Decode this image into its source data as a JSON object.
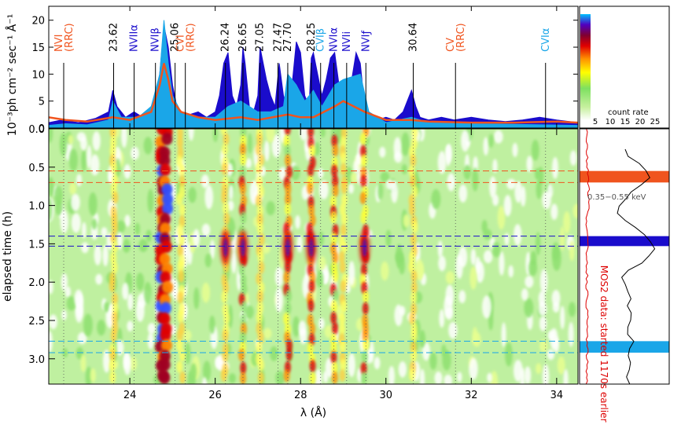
{
  "chart_data": [
    {
      "type": "area",
      "panel": "spectrum",
      "ylabel": "10⁻³ph cm⁻² sec⁻¹ Å⁻¹",
      "xlim": [
        22.1,
        34.5
      ],
      "ylim": [
        0,
        22
      ],
      "yticks": [
        0,
        5,
        10,
        15,
        20
      ],
      "series": [
        {
          "color": "#1a0ccc",
          "x": [
            22.1,
            22.4,
            22.8,
            23.2,
            23.5,
            23.6,
            23.7,
            23.9,
            24.1,
            24.3,
            24.5,
            24.6,
            24.7,
            24.8,
            24.9,
            25.0,
            25.1,
            25.2,
            25.4,
            25.6,
            25.8,
            26.0,
            26.1,
            26.2,
            26.3,
            26.4,
            26.5,
            26.6,
            26.65,
            26.7,
            26.8,
            26.9,
            27.0,
            27.05,
            27.1,
            27.2,
            27.3,
            27.4,
            27.5,
            27.6,
            27.7,
            27.8,
            27.9,
            28.0,
            28.1,
            28.2,
            28.25,
            28.3,
            28.4,
            28.5,
            28.6,
            28.7,
            28.8,
            28.9,
            29.0,
            29.1,
            29.2,
            29.3,
            29.4,
            29.5,
            29.6,
            29.8,
            30.0,
            30.2,
            30.4,
            30.6,
            30.7,
            30.8,
            31.0,
            31.3,
            31.6,
            32.0,
            32.4,
            32.8,
            33.2,
            33.6,
            34.0,
            34.5
          ],
          "y": [
            1,
            1.5,
            1,
            1.8,
            3,
            7,
            4,
            2,
            3,
            2,
            4,
            6,
            10,
            19,
            15,
            8,
            4,
            3,
            2.5,
            3,
            2,
            3,
            6,
            12,
            14,
            6,
            4,
            8,
            15,
            12,
            4,
            3,
            6,
            15,
            13,
            9,
            6,
            4,
            12,
            6,
            3,
            8,
            16,
            14,
            6,
            4,
            13,
            14,
            10,
            6,
            9,
            13,
            14,
            8,
            6,
            4,
            9,
            14,
            12,
            4,
            2,
            1.5,
            2,
            1.5,
            3,
            7,
            4,
            2,
            1.5,
            2,
            1.5,
            2,
            1.5,
            1.2,
            1.5,
            2,
            1.5,
            1
          ]
        },
        {
          "color": "#1aa6e8",
          "x": [
            22.1,
            22.5,
            23.0,
            23.5,
            23.6,
            23.8,
            24.2,
            24.5,
            24.7,
            24.8,
            24.9,
            25.0,
            25.2,
            25.6,
            26.0,
            26.3,
            26.6,
            26.8,
            27.0,
            27.3,
            27.6,
            27.7,
            27.9,
            28.1,
            28.3,
            28.5,
            28.8,
            29.0,
            29.4,
            29.6,
            30.0,
            30.6,
            31.0,
            32.0,
            33.0,
            34.5
          ],
          "y": [
            0.5,
            0.8,
            0.6,
            1.5,
            5,
            2,
            2,
            4,
            10,
            20,
            12,
            6,
            3,
            2,
            2,
            4,
            5,
            4,
            3,
            3,
            4,
            10,
            8,
            5,
            7,
            4,
            8,
            9,
            10,
            3,
            1,
            2,
            1,
            0.8,
            0.7,
            0.5
          ]
        },
        {
          "color": "#f0541e",
          "x": [
            22.1,
            22.5,
            23.0,
            23.6,
            24.0,
            24.5,
            24.7,
            24.8,
            24.9,
            25.0,
            25.2,
            25.6,
            26.0,
            26.6,
            27.0,
            27.7,
            28.0,
            28.3,
            28.8,
            29.0,
            29.5,
            30.0,
            30.6,
            31.0,
            32.0,
            33.0,
            34.0,
            34.5
          ],
          "y": [
            2,
            1.5,
            1.2,
            2,
            1.5,
            3,
            8,
            12,
            9,
            5,
            3,
            2,
            1.5,
            2,
            1.5,
            2.5,
            2,
            2,
            4,
            5,
            3,
            1.5,
            1.5,
            1.2,
            1,
            1,
            1.2,
            1
          ]
        }
      ],
      "line_labels": [
        {
          "x": 22.45,
          "text": "NVI (RRC)",
          "color": "#f0541e"
        },
        {
          "x": 23.62,
          "text": "23.62",
          "color": "#000000"
        },
        {
          "x": 24.1,
          "text": "NVIIα",
          "color": "#1a0ccc"
        },
        {
          "x": 24.6,
          "text": "NVIβ",
          "color": "#1a0ccc"
        },
        {
          "x": 25.06,
          "text": "25.06",
          "color": "#000000"
        },
        {
          "x": 25.3,
          "text": "CVI (RRC)",
          "color": "#f0541e"
        },
        {
          "x": 26.24,
          "text": "26.24",
          "color": "#000000"
        },
        {
          "x": 26.65,
          "text": "26.65",
          "color": "#000000"
        },
        {
          "x": 27.05,
          "text": "27.05",
          "color": "#000000"
        },
        {
          "x": 27.47,
          "text": "27.47",
          "color": "#000000"
        },
        {
          "x": 27.7,
          "text": "27.70",
          "color": "#000000"
        },
        {
          "x": 28.25,
          "text": "28.25",
          "color": "#000000"
        },
        {
          "x": 28.47,
          "text": "CVIβ",
          "color": "#1aa6e8"
        },
        {
          "x": 28.78,
          "text": "NVIα",
          "color": "#1a0ccc"
        },
        {
          "x": 29.08,
          "text": "NVIi",
          "color": "#1a0ccc"
        },
        {
          "x": 29.53,
          "text": "NVIƒ",
          "color": "#1a0ccc"
        },
        {
          "x": 30.64,
          "text": "30.64",
          "color": "#000000"
        },
        {
          "x": 31.63,
          "text": "CV (RRC)",
          "color": "#f0541e"
        },
        {
          "x": 33.74,
          "text": "CVIα",
          "color": "#1aa6e8"
        }
      ]
    },
    {
      "type": "heatmap",
      "panel": "dynamic-spectrum",
      "xlabel": "λ (Å)",
      "ylabel": "elapsed time (h)",
      "xlim": [
        22.1,
        34.5
      ],
      "ylim": [
        0,
        3.33
      ],
      "xticks": [
        24,
        26,
        28,
        30,
        32,
        34
      ],
      "yticks": [
        0.0,
        0.5,
        1.0,
        1.5,
        2.0,
        2.5,
        3.0
      ],
      "colorbar": {
        "label": "count rate",
        "ticks": [
          5,
          10,
          15,
          20,
          25
        ]
      },
      "hot_columns": [
        24.75,
        24.85,
        25.2,
        26.24,
        26.65,
        27.05,
        27.7,
        28.25,
        28.8,
        29.0,
        29.5,
        23.62,
        30.64
      ],
      "time_bands": [
        {
          "t0": 0.55,
          "t1": 0.7,
          "color": "#f0541e"
        },
        {
          "t0": 1.4,
          "t1": 1.53,
          "color": "#1a0ccc"
        },
        {
          "t0": 2.77,
          "t1": 2.92,
          "color": "#1aa6e8"
        }
      ]
    },
    {
      "type": "line",
      "panel": "light-curve",
      "annotations": [
        "0.35−0.55 keV",
        "MOS2 data: started 1170s earlier"
      ],
      "series_colors": [
        "#000000",
        "#dd0000"
      ],
      "black_values_sample": [
        0.4,
        0.5,
        0.7,
        0.8,
        0.9,
        0.7,
        0.5,
        0.4,
        0.3,
        0.3,
        0.4,
        0.6,
        0.8,
        0.9,
        1.0,
        0.9,
        0.7,
        0.5,
        0.4,
        0.4,
        0.45,
        0.5,
        0.45,
        0.5,
        0.5,
        0.45,
        0.5,
        0.6,
        0.5,
        0.45,
        0.5,
        0.5,
        0.45,
        0.5
      ]
    }
  ]
}
